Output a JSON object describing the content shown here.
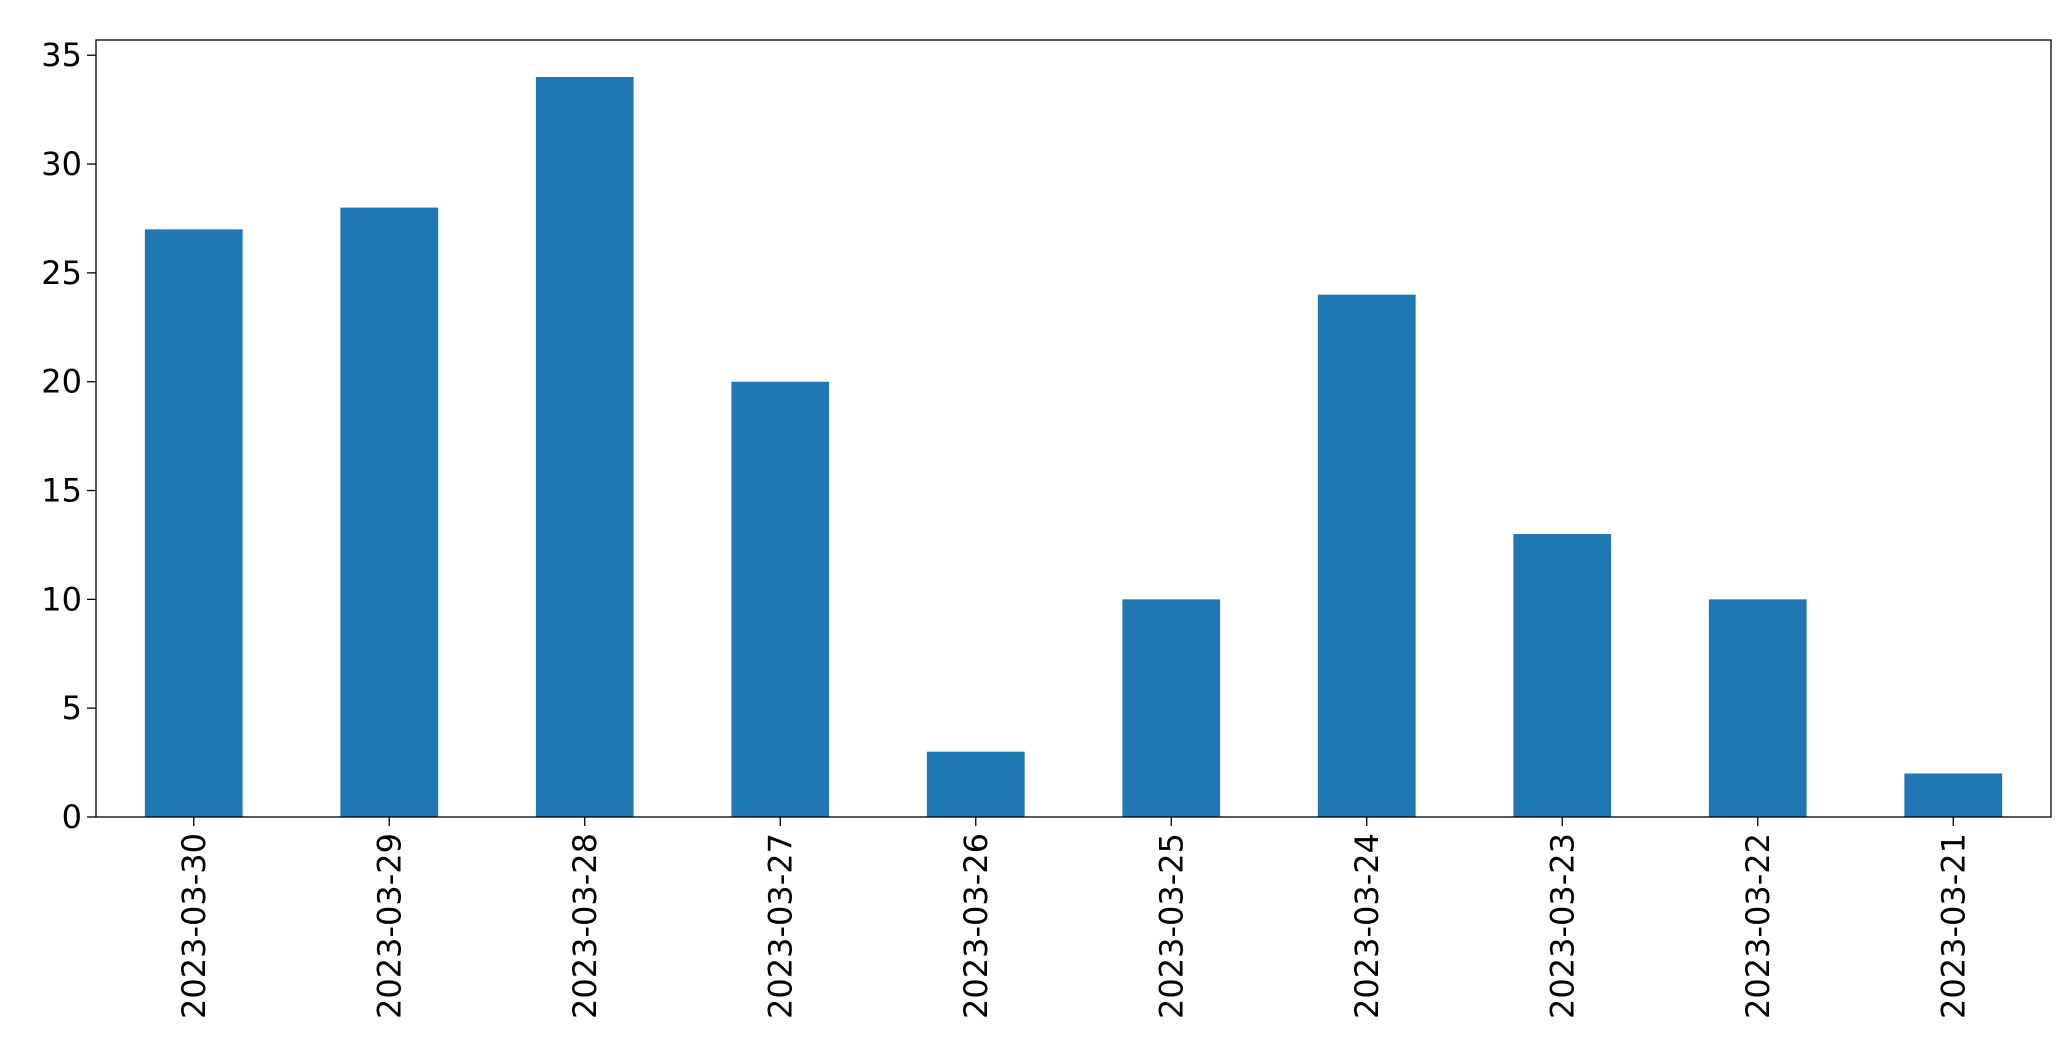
{
  "chart_data": {
    "type": "bar",
    "categories": [
      "2023-03-30",
      "2023-03-29",
      "2023-03-28",
      "2023-03-27",
      "2023-03-26",
      "2023-03-25",
      "2023-03-24",
      "2023-03-23",
      "2023-03-22",
      "2023-03-21"
    ],
    "values": [
      27,
      28,
      34,
      20,
      3,
      10,
      24,
      13,
      10,
      2
    ],
    "color": "#1f77b4",
    "ylim": [
      0,
      35.7
    ],
    "yticks": [
      0,
      5,
      10,
      15,
      20,
      25,
      30,
      35
    ],
    "grid": false
  }
}
